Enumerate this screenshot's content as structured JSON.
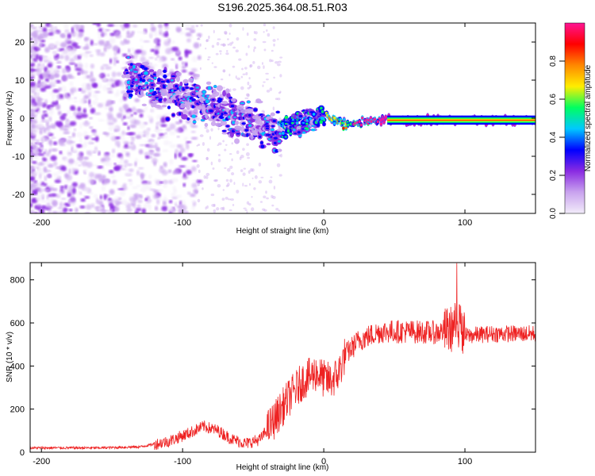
{
  "title": "S196.2025.364.08.51.R03",
  "chart_data": [
    {
      "type": "heatmap",
      "name": "spectrogram",
      "xlabel": "Height of straight line (km)",
      "ylabel": "Frequency (Hz)",
      "xlim": [
        -208,
        150
      ],
      "ylim": [
        -25,
        25
      ],
      "xticks": [
        -200,
        -100,
        0,
        100
      ],
      "xtick_labels": [
        "-200",
        "-100",
        "0",
        "100"
      ],
      "yticks": [
        -20,
        -10,
        0,
        10,
        20
      ],
      "ytick_labels": [
        "-20",
        "-10",
        "0",
        "10",
        "20"
      ],
      "colorbar": {
        "label": "Normalized spectral amplitude",
        "range": [
          0,
          1
        ],
        "ticks": [
          0,
          0.2,
          0.4,
          0.6,
          0.8
        ],
        "tick_labels": [
          "0.0",
          "0.2",
          "0.4",
          "0.6",
          "0.8"
        ],
        "colors": [
          "#f2ecfa",
          "#c9a3ee",
          "#8a2be2",
          "#0000ff",
          "#00c8ff",
          "#00ff60",
          "#ffee00",
          "#ff8800",
          "#ff0000",
          "#ff1493"
        ]
      },
      "ridge": {
        "x": [
          -130,
          -110,
          -90,
          -70,
          -50,
          -35,
          -25,
          -15,
          -5,
          0,
          5,
          10,
          15,
          25,
          40,
          60,
          80,
          100,
          120,
          150
        ],
        "y": [
          10,
          7,
          4,
          2,
          -1,
          -4,
          -2,
          -1,
          0,
          1,
          0,
          -1,
          -1.5,
          -1,
          -0.5,
          -0.5,
          -0.5,
          -0.5,
          -0.5,
          -0.5
        ]
      }
    },
    {
      "type": "line",
      "name": "snr",
      "xlabel": "Height of straight line (km)",
      "ylabel": "SNR (10 * v/v)",
      "xlim": [
        -208,
        150
      ],
      "ylim": [
        0,
        880
      ],
      "xticks": [
        -200,
        -100,
        0,
        100
      ],
      "xtick_labels": [
        "-200",
        "-100",
        "0",
        "100"
      ],
      "yticks": [
        0,
        200,
        400,
        600,
        800
      ],
      "ytick_labels": [
        "0",
        "200",
        "400",
        "600",
        "800"
      ],
      "color": "#ee2222",
      "envelope": {
        "x": [
          -208,
          -160,
          -130,
          -110,
          -95,
          -85,
          -75,
          -65,
          -55,
          -45,
          -35,
          -25,
          -15,
          -5,
          0,
          5,
          10,
          15,
          25,
          40,
          60,
          80,
          90,
          95,
          100,
          120,
          150
        ],
        "y": [
          20,
          20,
          25,
          50,
          90,
          120,
          100,
          60,
          40,
          60,
          150,
          250,
          330,
          370,
          340,
          330,
          360,
          450,
          520,
          560,
          560,
          555,
          570,
          600,
          540,
          550,
          550
        ]
      }
    }
  ]
}
